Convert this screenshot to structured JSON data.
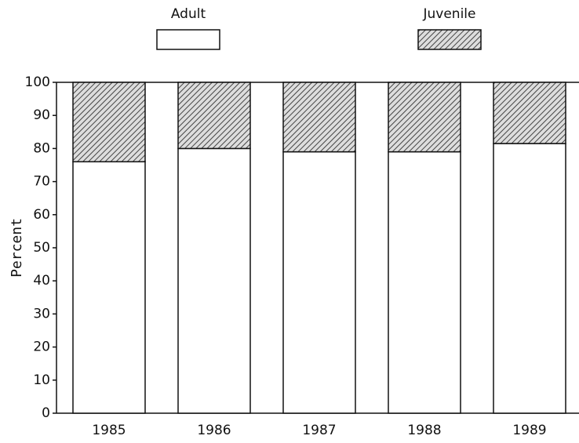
{
  "chart_data": {
    "type": "stacked_bar",
    "ylabel": "Percent",
    "categories": [
      "1985",
      "1986",
      "1987",
      "1988",
      "1989"
    ],
    "series": [
      {
        "name": "Adult",
        "color": "#ffffff",
        "hatch": false,
        "values": [
          76,
          80,
          79,
          79,
          81.5
        ]
      },
      {
        "name": "Juvenile",
        "color": "#444444",
        "hatch": true,
        "values": [
          24,
          20,
          21,
          21,
          18.5
        ]
      }
    ],
    "ylim": [
      0,
      100
    ],
    "yticks": [
      0,
      10,
      20,
      30,
      40,
      50,
      60,
      70,
      80,
      90,
      100
    ],
    "grid": false
  }
}
